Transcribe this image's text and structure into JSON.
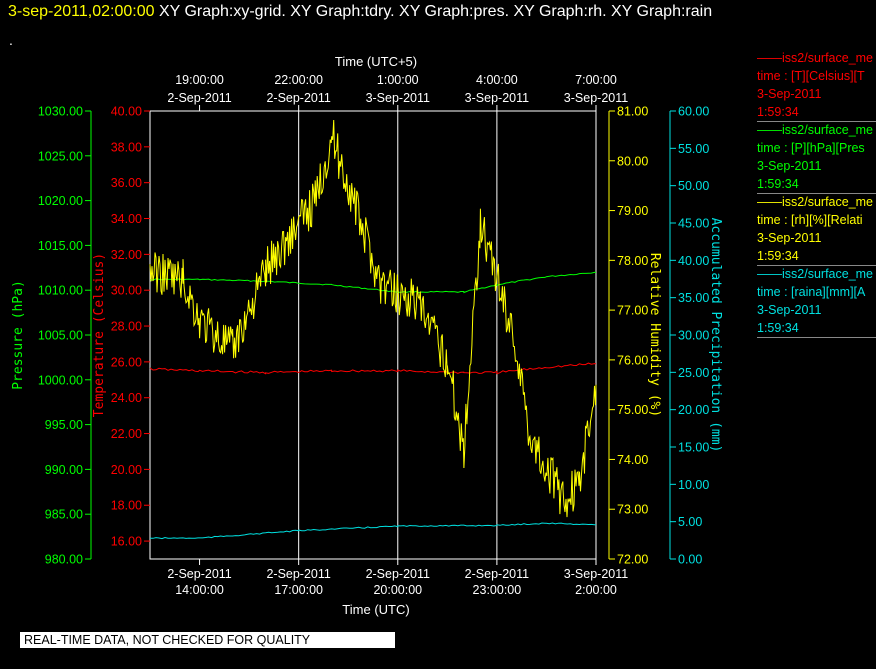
{
  "header": {
    "timestamp": "3-sep-2011,02:00:00",
    "graphs": "XY Graph:xy-grid.  XY Graph:tdry.  XY Graph:pres.  XY Graph:rh.  XY Graph:rain",
    "dot": "."
  },
  "footer": {
    "notice": "REAL-TIME DATA, NOT CHECKED FOR QUALITY"
  },
  "colors": {
    "background": "#000000",
    "pressure": "#00ff00",
    "temperature": "#ff0000",
    "humidity": "#ffff00",
    "precip": "#00e0e0",
    "grid": "#ffffff"
  },
  "legend": [
    {
      "lines": [
        "——iss2/surface_me",
        "time : [T][Celsius][T",
        "3-Sep-2011",
        "1:59:34"
      ],
      "color": "#ff0000"
    },
    {
      "lines": [
        "——iss2/surface_me",
        "time : [P][hPa][Pres",
        "3-Sep-2011",
        "1:59:34"
      ],
      "color": "#00ff00"
    },
    {
      "lines": [
        "——iss2/surface_me",
        "time : [rh][%][Relati",
        "3-Sep-2011",
        "1:59:34"
      ],
      "color": "#ffff00"
    },
    {
      "lines": [
        "——iss2/surface_me",
        "time : [raina][mm][A",
        "3-Sep-2011",
        "1:59:34"
      ],
      "color": "#00e0e0"
    }
  ],
  "chart_data": {
    "type": "line",
    "title": "",
    "xlabel": "Time (UTC)",
    "x2label": "Time (UTC+5)",
    "xlim": [
      "2011-09-02T12:30:00Z",
      "2011-09-03T02:00:00Z"
    ],
    "x_ticks_bottom": [
      {
        "date": "2-Sep-2011",
        "time": "14:00:00"
      },
      {
        "date": "2-Sep-2011",
        "time": "17:00:00"
      },
      {
        "date": "2-Sep-2011",
        "time": "20:00:00"
      },
      {
        "date": "2-Sep-2011",
        "time": "23:00:00"
      },
      {
        "date": "3-Sep-2011",
        "time": "2:00:00"
      }
    ],
    "x_ticks_top": [
      {
        "time": "19:00:00",
        "date": "2-Sep-2011"
      },
      {
        "time": "22:00:00",
        "date": "2-Sep-2011"
      },
      {
        "time": "1:00:00",
        "date": "3-Sep-2011"
      },
      {
        "time": "4:00:00",
        "date": "3-Sep-2011"
      },
      {
        "time": "7:00:00",
        "date": "3-Sep-2011"
      }
    ],
    "grid": true,
    "axes": [
      {
        "id": "pressure",
        "label": "Pressure (hPa)",
        "min": 980,
        "max": 1030,
        "ticks": [
          "980.00",
          "985.00",
          "990.00",
          "995.00",
          "1000.00",
          "1005.00",
          "1010.00",
          "1015.00",
          "1020.00",
          "1025.00",
          "1030.00"
        ]
      },
      {
        "id": "temperature",
        "label": "Temperature (Celsius)",
        "min": 15,
        "max": 40,
        "ticks": [
          "16.00",
          "18.00",
          "20.00",
          "22.00",
          "24.00",
          "26.00",
          "28.00",
          "30.00",
          "32.00",
          "34.00",
          "36.00",
          "38.00",
          "40.00"
        ]
      },
      {
        "id": "humidity",
        "label": "Relative Humidity (%)",
        "min": 72,
        "max": 81,
        "ticks": [
          "72.00",
          "73.00",
          "74.00",
          "75.00",
          "76.00",
          "77.00",
          "78.00",
          "79.00",
          "80.00",
          "81.00"
        ]
      },
      {
        "id": "precip",
        "label": "Accumulated Precipitation (mm)",
        "min": 0,
        "max": 60,
        "ticks": [
          "0.00",
          "5.00",
          "10.00",
          "15.00",
          "20.00",
          "25.00",
          "30.00",
          "35.00",
          "40.00",
          "45.00",
          "50.00",
          "55.00",
          "60.00"
        ]
      }
    ],
    "series": [
      {
        "id": "pressure",
        "axis": "pressure",
        "color": "#00ff00",
        "x": [
          "2011-09-02T12:30:00Z",
          "2011-09-02T14:00:00Z",
          "2011-09-02T16:00:00Z",
          "2011-09-02T18:00:00Z",
          "2011-09-02T20:00:00Z",
          "2011-09-02T22:00:00Z",
          "2011-09-02T23:00:00Z",
          "2011-09-03T00:30:00Z",
          "2011-09-03T02:00:00Z"
        ],
        "y": [
          1011.2,
          1011.2,
          1011.0,
          1010.6,
          1009.8,
          1009.8,
          1010.6,
          1011.5,
          1012.0
        ]
      },
      {
        "id": "temperature",
        "axis": "temperature",
        "color": "#ff0000",
        "x": [
          "2011-09-02T12:30:00Z",
          "2011-09-02T14:00:00Z",
          "2011-09-02T16:00:00Z",
          "2011-09-02T18:00:00Z",
          "2011-09-02T20:00:00Z",
          "2011-09-02T22:00:00Z",
          "2011-09-02T23:00:00Z",
          "2011-09-03T00:30:00Z",
          "2011-09-03T02:00:00Z"
        ],
        "y": [
          25.6,
          25.5,
          25.4,
          25.5,
          25.5,
          25.4,
          25.4,
          25.7,
          25.9
        ]
      },
      {
        "id": "humidity",
        "axis": "humidity",
        "color": "#ffff00",
        "x": [
          "2011-09-02T12:30:00Z",
          "2011-09-02T13:30:00Z",
          "2011-09-02T14:00:00Z",
          "2011-09-02T15:00:00Z",
          "2011-09-02T16:00:00Z",
          "2011-09-02T17:30:00Z",
          "2011-09-02T18:00:00Z",
          "2011-09-02T19:30:00Z",
          "2011-09-02T20:30:00Z",
          "2011-09-02T21:30:00Z",
          "2011-09-02T22:00:00Z",
          "2011-09-02T22:30:00Z",
          "2011-09-02T23:30:00Z",
          "2011-09-03T00:00:00Z",
          "2011-09-03T01:00:00Z",
          "2011-09-03T01:30:00Z",
          "2011-09-03T02:00:00Z"
        ],
        "y": [
          77.8,
          77.6,
          76.8,
          76.2,
          77.8,
          79.2,
          80.5,
          77.5,
          77.2,
          76.0,
          74.2,
          78.8,
          76.5,
          74.5,
          73.2,
          73.5,
          75.5
        ]
      },
      {
        "id": "precip",
        "axis": "precip",
        "color": "#00e0e0",
        "x": [
          "2011-09-02T12:30:00Z",
          "2011-09-02T14:00:00Z",
          "2011-09-02T17:00:00Z",
          "2011-09-02T20:00:00Z",
          "2011-09-02T23:00:00Z",
          "2011-09-03T00:30:00Z",
          "2011-09-03T02:00:00Z"
        ],
        "y": [
          2.8,
          2.8,
          3.8,
          4.4,
          4.5,
          4.8,
          4.6
        ]
      }
    ]
  }
}
